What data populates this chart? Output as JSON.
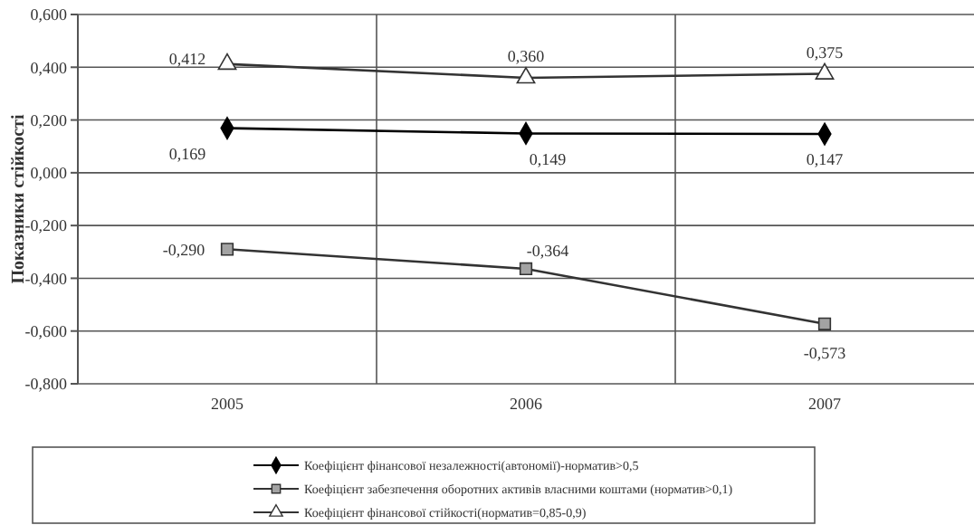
{
  "chart_data": {
    "type": "line",
    "ylabel": "Показники стійкості",
    "categories": [
      "2005",
      "2006",
      "2007"
    ],
    "series": [
      {
        "name": "Коефіцієнт фінансової незалежності(автономії)-норматив>0,5",
        "color": "#000000",
        "marker": "diamond",
        "values": [
          0.169,
          0.149,
          0.147
        ],
        "value_labels": [
          "0,169",
          "0,149",
          "0,147"
        ]
      },
      {
        "name": "Коефіцієнт забезпечення оборотних активів власними коштами (норматив>0,1)",
        "color": "#333333",
        "marker": "square",
        "values": [
          -0.29,
          -0.364,
          -0.573
        ],
        "value_labels": [
          "-0,290",
          "-0,364",
          "-0,573"
        ]
      },
      {
        "name": "Коефіцієнт фінансової стійкості(норматив=0,85-0,9)",
        "color": "#333333",
        "marker": "triangle",
        "values": [
          0.412,
          0.36,
          0.375
        ],
        "value_labels": [
          "0,412",
          "0,360",
          "0,375"
        ]
      }
    ],
    "ylim": [
      -0.8,
      0.6
    ],
    "yticks": [
      {
        "value": -0.8,
        "label": "-0,800"
      },
      {
        "value": -0.6,
        "label": "-0,600"
      },
      {
        "value": -0.4,
        "label": "-0,400"
      },
      {
        "value": -0.2,
        "label": "-0,200"
      },
      {
        "value": 0,
        "label": "0,000"
      },
      {
        "value": 0.2,
        "label": "0,200"
      },
      {
        "value": 0.4,
        "label": "0,400"
      },
      {
        "value": 0.6,
        "label": "0,600"
      }
    ],
    "grid": true,
    "legend": "bottom",
    "line_style": "solid"
  }
}
